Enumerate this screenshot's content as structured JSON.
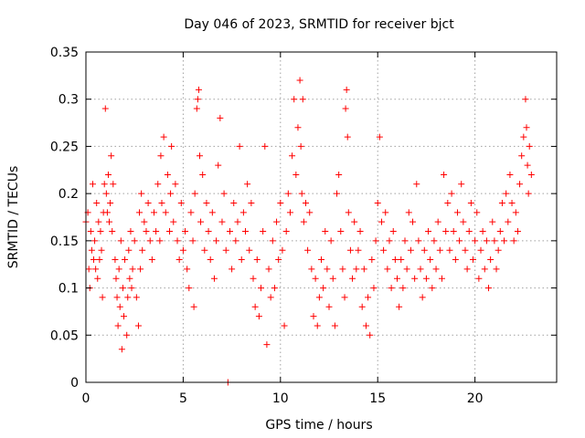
{
  "chart_data": {
    "type": "scatter",
    "title": "Day 046 of 2023, SRMTID for receiver bjct",
    "xlabel": "GPS time / hours",
    "ylabel": "SRMTID / TECUs",
    "xlim": [
      0,
      24.2
    ],
    "ylim": [
      0,
      0.35
    ],
    "x_ticks": [
      "0",
      "5",
      "10",
      "15",
      "20"
    ],
    "y_ticks": [
      "0",
      "0.05",
      "0.1",
      "0.15",
      "0.2",
      "0.25",
      "0.3",
      "0.35"
    ],
    "grid": true,
    "legend": "none",
    "series": [
      {
        "marker": "+",
        "color": "#ff0000",
        "points": [
          [
            0.0,
            0.17
          ],
          [
            0.1,
            0.18
          ],
          [
            0.15,
            0.12
          ],
          [
            0.2,
            0.1
          ],
          [
            0.25,
            0.16
          ],
          [
            0.3,
            0.14
          ],
          [
            0.35,
            0.21
          ],
          [
            0.4,
            0.13
          ],
          [
            0.45,
            0.15
          ],
          [
            0.5,
            0.12
          ],
          [
            0.55,
            0.19
          ],
          [
            0.6,
            0.11
          ],
          [
            0.65,
            0.17
          ],
          [
            0.7,
            0.13
          ],
          [
            0.75,
            0.16
          ],
          [
            0.8,
            0.14
          ],
          [
            0.85,
            0.09
          ],
          [
            0.9,
            0.18
          ],
          [
            0.95,
            0.21
          ],
          [
            1.0,
            0.29
          ],
          [
            1.05,
            0.2
          ],
          [
            1.1,
            0.18
          ],
          [
            1.15,
            0.22
          ],
          [
            1.2,
            0.17
          ],
          [
            1.25,
            0.19
          ],
          [
            1.3,
            0.24
          ],
          [
            1.35,
            0.16
          ],
          [
            1.4,
            0.21
          ],
          [
            1.5,
            0.13
          ],
          [
            1.55,
            0.11
          ],
          [
            1.6,
            0.09
          ],
          [
            1.65,
            0.06
          ],
          [
            1.7,
            0.12
          ],
          [
            1.75,
            0.08
          ],
          [
            1.8,
            0.15
          ],
          [
            1.85,
            0.035
          ],
          [
            1.9,
            0.1
          ],
          [
            1.95,
            0.07
          ],
          [
            2.0,
            0.13
          ],
          [
            2.1,
            0.05
          ],
          [
            2.15,
            0.09
          ],
          [
            2.2,
            0.14
          ],
          [
            2.25,
            0.11
          ],
          [
            2.3,
            0.16
          ],
          [
            2.35,
            0.1
          ],
          [
            2.4,
            0.12
          ],
          [
            2.5,
            0.15
          ],
          [
            2.6,
            0.09
          ],
          [
            2.7,
            0.06
          ],
          [
            2.75,
            0.18
          ],
          [
            2.8,
            0.12
          ],
          [
            2.85,
            0.2
          ],
          [
            2.9,
            0.14
          ],
          [
            3.0,
            0.17
          ],
          [
            3.1,
            0.16
          ],
          [
            3.2,
            0.19
          ],
          [
            3.3,
            0.15
          ],
          [
            3.4,
            0.13
          ],
          [
            3.5,
            0.18
          ],
          [
            3.6,
            0.16
          ],
          [
            3.7,
            0.21
          ],
          [
            3.8,
            0.15
          ],
          [
            3.85,
            0.24
          ],
          [
            3.9,
            0.19
          ],
          [
            4.0,
            0.26
          ],
          [
            4.1,
            0.18
          ],
          [
            4.2,
            0.22
          ],
          [
            4.3,
            0.16
          ],
          [
            4.35,
            0.2
          ],
          [
            4.4,
            0.25
          ],
          [
            4.5,
            0.17
          ],
          [
            4.6,
            0.21
          ],
          [
            4.7,
            0.15
          ],
          [
            4.8,
            0.13
          ],
          [
            4.9,
            0.19
          ],
          [
            5.0,
            0.14
          ],
          [
            5.1,
            0.16
          ],
          [
            5.2,
            0.12
          ],
          [
            5.3,
            0.1
          ],
          [
            5.4,
            0.18
          ],
          [
            5.5,
            0.15
          ],
          [
            5.55,
            0.08
          ],
          [
            5.6,
            0.2
          ],
          [
            5.7,
            0.29
          ],
          [
            5.75,
            0.3
          ],
          [
            5.8,
            0.31
          ],
          [
            5.85,
            0.24
          ],
          [
            5.9,
            0.17
          ],
          [
            6.0,
            0.22
          ],
          [
            6.1,
            0.14
          ],
          [
            6.2,
            0.19
          ],
          [
            6.3,
            0.16
          ],
          [
            6.4,
            0.13
          ],
          [
            6.5,
            0.18
          ],
          [
            6.6,
            0.11
          ],
          [
            6.7,
            0.15
          ],
          [
            6.8,
            0.23
          ],
          [
            6.9,
            0.28
          ],
          [
            7.0,
            0.17
          ],
          [
            7.1,
            0.2
          ],
          [
            7.2,
            0.14
          ],
          [
            7.3,
            0.0
          ],
          [
            7.4,
            0.16
          ],
          [
            7.5,
            0.12
          ],
          [
            7.6,
            0.19
          ],
          [
            7.7,
            0.15
          ],
          [
            7.8,
            0.17
          ],
          [
            7.9,
            0.25
          ],
          [
            8.0,
            0.13
          ],
          [
            8.1,
            0.18
          ],
          [
            8.2,
            0.16
          ],
          [
            8.3,
            0.21
          ],
          [
            8.4,
            0.14
          ],
          [
            8.5,
            0.19
          ],
          [
            8.6,
            0.11
          ],
          [
            8.7,
            0.08
          ],
          [
            8.8,
            0.13
          ],
          [
            8.9,
            0.07
          ],
          [
            9.0,
            0.1
          ],
          [
            9.1,
            0.16
          ],
          [
            9.2,
            0.25
          ],
          [
            9.3,
            0.04
          ],
          [
            9.4,
            0.12
          ],
          [
            9.5,
            0.09
          ],
          [
            9.6,
            0.15
          ],
          [
            9.7,
            0.1
          ],
          [
            9.8,
            0.17
          ],
          [
            9.9,
            0.13
          ],
          [
            10.0,
            0.19
          ],
          [
            10.1,
            0.14
          ],
          [
            10.2,
            0.06
          ],
          [
            10.3,
            0.16
          ],
          [
            10.4,
            0.2
          ],
          [
            10.5,
            0.18
          ],
          [
            10.6,
            0.24
          ],
          [
            10.7,
            0.3
          ],
          [
            10.8,
            0.22
          ],
          [
            10.9,
            0.27
          ],
          [
            11.0,
            0.32
          ],
          [
            11.05,
            0.25
          ],
          [
            11.1,
            0.2
          ],
          [
            11.15,
            0.3
          ],
          [
            11.2,
            0.17
          ],
          [
            11.3,
            0.19
          ],
          [
            11.4,
            0.14
          ],
          [
            11.5,
            0.18
          ],
          [
            11.6,
            0.12
          ],
          [
            11.7,
            0.07
          ],
          [
            11.8,
            0.11
          ],
          [
            11.9,
            0.06
          ],
          [
            12.0,
            0.09
          ],
          [
            12.1,
            0.13
          ],
          [
            12.2,
            0.1
          ],
          [
            12.3,
            0.16
          ],
          [
            12.4,
            0.12
          ],
          [
            12.5,
            0.08
          ],
          [
            12.6,
            0.15
          ],
          [
            12.7,
            0.11
          ],
          [
            12.8,
            0.06
          ],
          [
            12.9,
            0.2
          ],
          [
            13.0,
            0.22
          ],
          [
            13.1,
            0.16
          ],
          [
            13.2,
            0.12
          ],
          [
            13.3,
            0.09
          ],
          [
            13.35,
            0.29
          ],
          [
            13.4,
            0.31
          ],
          [
            13.45,
            0.26
          ],
          [
            13.5,
            0.18
          ],
          [
            13.6,
            0.14
          ],
          [
            13.7,
            0.11
          ],
          [
            13.8,
            0.17
          ],
          [
            13.9,
            0.12
          ],
          [
            14.0,
            0.14
          ],
          [
            14.1,
            0.16
          ],
          [
            14.2,
            0.08
          ],
          [
            14.3,
            0.12
          ],
          [
            14.4,
            0.06
          ],
          [
            14.5,
            0.09
          ],
          [
            14.6,
            0.05
          ],
          [
            14.7,
            0.13
          ],
          [
            14.8,
            0.1
          ],
          [
            14.9,
            0.15
          ],
          [
            15.0,
            0.19
          ],
          [
            15.1,
            0.26
          ],
          [
            15.2,
            0.17
          ],
          [
            15.3,
            0.14
          ],
          [
            15.4,
            0.18
          ],
          [
            15.5,
            0.12
          ],
          [
            15.6,
            0.15
          ],
          [
            15.7,
            0.1
          ],
          [
            15.8,
            0.16
          ],
          [
            15.9,
            0.13
          ],
          [
            16.0,
            0.11
          ],
          [
            16.1,
            0.08
          ],
          [
            16.2,
            0.13
          ],
          [
            16.3,
            0.1
          ],
          [
            16.4,
            0.15
          ],
          [
            16.5,
            0.12
          ],
          [
            16.6,
            0.18
          ],
          [
            16.7,
            0.14
          ],
          [
            16.8,
            0.17
          ],
          [
            16.9,
            0.11
          ],
          [
            17.0,
            0.21
          ],
          [
            17.1,
            0.15
          ],
          [
            17.2,
            0.12
          ],
          [
            17.3,
            0.09
          ],
          [
            17.4,
            0.14
          ],
          [
            17.5,
            0.11
          ],
          [
            17.6,
            0.16
          ],
          [
            17.7,
            0.13
          ],
          [
            17.8,
            0.1
          ],
          [
            17.9,
            0.15
          ],
          [
            18.0,
            0.12
          ],
          [
            18.1,
            0.17
          ],
          [
            18.2,
            0.14
          ],
          [
            18.3,
            0.11
          ],
          [
            18.4,
            0.22
          ],
          [
            18.5,
            0.16
          ],
          [
            18.6,
            0.19
          ],
          [
            18.7,
            0.14
          ],
          [
            18.8,
            0.2
          ],
          [
            18.9,
            0.16
          ],
          [
            19.0,
            0.13
          ],
          [
            19.1,
            0.18
          ],
          [
            19.2,
            0.15
          ],
          [
            19.3,
            0.21
          ],
          [
            19.4,
            0.17
          ],
          [
            19.5,
            0.14
          ],
          [
            19.6,
            0.12
          ],
          [
            19.7,
            0.16
          ],
          [
            19.8,
            0.19
          ],
          [
            19.9,
            0.13
          ],
          [
            20.0,
            0.15
          ],
          [
            20.1,
            0.18
          ],
          [
            20.2,
            0.11
          ],
          [
            20.3,
            0.14
          ],
          [
            20.4,
            0.16
          ],
          [
            20.5,
            0.12
          ],
          [
            20.6,
            0.15
          ],
          [
            20.7,
            0.1
          ],
          [
            20.8,
            0.13
          ],
          [
            20.9,
            0.17
          ],
          [
            21.0,
            0.15
          ],
          [
            21.1,
            0.12
          ],
          [
            21.2,
            0.14
          ],
          [
            21.3,
            0.16
          ],
          [
            21.4,
            0.19
          ],
          [
            21.5,
            0.15
          ],
          [
            21.6,
            0.2
          ],
          [
            21.7,
            0.17
          ],
          [
            21.8,
            0.22
          ],
          [
            21.9,
            0.19
          ],
          [
            22.0,
            0.15
          ],
          [
            22.1,
            0.18
          ],
          [
            22.2,
            0.16
          ],
          [
            22.3,
            0.21
          ],
          [
            22.4,
            0.24
          ],
          [
            22.5,
            0.26
          ],
          [
            22.6,
            0.3
          ],
          [
            22.65,
            0.27
          ],
          [
            22.7,
            0.23
          ],
          [
            22.75,
            0.2
          ],
          [
            22.8,
            0.25
          ],
          [
            22.9,
            0.22
          ]
        ]
      }
    ]
  }
}
